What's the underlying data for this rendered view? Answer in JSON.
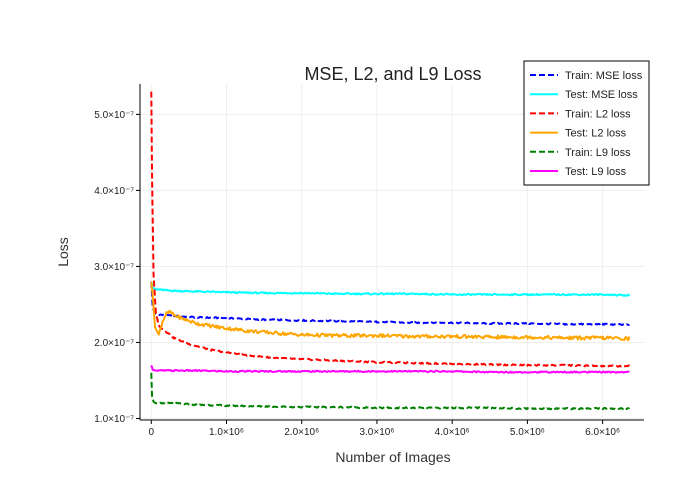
{
  "chart_data": {
    "type": "line",
    "title": "MSE, L2, and L9 Loss",
    "xlabel": "Number of Images",
    "ylabel": "Loss",
    "xlim": [
      -150000,
      6550000
    ],
    "ylim": [
      9.8e-08,
      5.4e-07
    ],
    "x_ticks": [
      0,
      1000000,
      2000000,
      3000000,
      4000000,
      5000000,
      6000000
    ],
    "x_tick_labels": [
      "0",
      "1.0×10⁶",
      "2.0×10⁶",
      "3.0×10⁶",
      "4.0×10⁶",
      "5.0×10⁶",
      "6.0×10⁶"
    ],
    "y_ticks": [
      1e-07,
      2e-07,
      3e-07,
      4e-07,
      5e-07
    ],
    "y_tick_labels": [
      "1.0×10⁻⁷",
      "2.0×10⁻⁷",
      "3.0×10⁻⁷",
      "4.0×10⁻⁷",
      "5.0×10⁻⁷"
    ],
    "grid": true,
    "legend_position": "top-right",
    "series": [
      {
        "name": "Train: MSE loss",
        "color": "#0000ff",
        "dash": "dashed",
        "x": [
          0,
          20000,
          60000,
          150000,
          300000,
          600000,
          1000000,
          1500000,
          2000000,
          2500000,
          3000000,
          3500000,
          4000000,
          4500000,
          5000000,
          5500000,
          6000000,
          6350000
        ],
        "y": [
          2.8e-07,
          2.45e-07,
          2.38e-07,
          2.36e-07,
          2.35e-07,
          2.33e-07,
          2.32e-07,
          2.3e-07,
          2.29e-07,
          2.28e-07,
          2.27e-07,
          2.26e-07,
          2.26e-07,
          2.25e-07,
          2.25e-07,
          2.24e-07,
          2.24e-07,
          2.23e-07
        ]
      },
      {
        "name": "Test: MSE loss",
        "color": "#00ffff",
        "dash": "solid",
        "x": [
          0,
          20000,
          60000,
          150000,
          300000,
          600000,
          1000000,
          1500000,
          2000000,
          2500000,
          3000000,
          3500000,
          4000000,
          4500000,
          5000000,
          5500000,
          6000000,
          6350000
        ],
        "y": [
          2.8e-07,
          2.72e-07,
          2.7e-07,
          2.69e-07,
          2.68e-07,
          2.67e-07,
          2.66e-07,
          2.65e-07,
          2.65e-07,
          2.64e-07,
          2.64e-07,
          2.64e-07,
          2.63e-07,
          2.63e-07,
          2.63e-07,
          2.63e-07,
          2.63e-07,
          2.62e-07
        ]
      },
      {
        "name": "Train: L2 loss",
        "color": "#ff0000",
        "dash": "dashed",
        "x": [
          0,
          10000,
          30000,
          60000,
          100000,
          200000,
          300000,
          500000,
          800000,
          1200000,
          1600000,
          2000000,
          2500000,
          3000000,
          3500000,
          4000000,
          4500000,
          5000000,
          5500000,
          6000000,
          6350000
        ],
        "y": [
          5.3e-07,
          4.2e-07,
          2.9e-07,
          2.4e-07,
          2.22e-07,
          2.14e-07,
          2.06e-07,
          1.98e-07,
          1.9e-07,
          1.84e-07,
          1.8e-07,
          1.78e-07,
          1.76e-07,
          1.74e-07,
          1.73e-07,
          1.72e-07,
          1.71e-07,
          1.7e-07,
          1.7e-07,
          1.69e-07,
          1.69e-07
        ]
      },
      {
        "name": "Test: L2 loss",
        "color": "#ffa500",
        "dash": "solid",
        "x": [
          0,
          20000,
          50000,
          100000,
          150000,
          200000,
          250000,
          300000,
          400000,
          600000,
          900000,
          1300000,
          1700000,
          2000000,
          2500000,
          3000000,
          3500000,
          4000000,
          4500000,
          5000000,
          5500000,
          6000000,
          6350000
        ],
        "y": [
          2.8e-07,
          2.6e-07,
          2.2e-07,
          2.1e-07,
          2.28e-07,
          2.38e-07,
          2.4e-07,
          2.36e-07,
          2.32e-07,
          2.25e-07,
          2.2e-07,
          2.15e-07,
          2.12e-07,
          2.1e-07,
          2.09e-07,
          2.09e-07,
          2.08e-07,
          2.08e-07,
          2.07e-07,
          2.07e-07,
          2.06e-07,
          2.06e-07,
          2.05e-07
        ]
      },
      {
        "name": "Train: L9 loss",
        "color": "#008000",
        "dash": "dashed",
        "x": [
          0,
          10000,
          30000,
          60000,
          150000,
          300000,
          600000,
          1000000,
          1500000,
          2000000,
          2500000,
          3000000,
          3500000,
          4000000,
          4500000,
          5000000,
          5500000,
          6000000,
          6350000
        ],
        "y": [
          1.6e-07,
          1.3e-07,
          1.22e-07,
          1.2e-07,
          1.2e-07,
          1.2e-07,
          1.18e-07,
          1.17e-07,
          1.16e-07,
          1.15e-07,
          1.15e-07,
          1.14e-07,
          1.14e-07,
          1.14e-07,
          1.14e-07,
          1.13e-07,
          1.13e-07,
          1.13e-07,
          1.13e-07
        ]
      },
      {
        "name": "Test: L9 loss",
        "color": "#ff00ff",
        "dash": "solid",
        "x": [
          0,
          20000,
          60000,
          150000,
          300000,
          600000,
          1000000,
          1500000,
          2000000,
          2500000,
          3000000,
          3500000,
          4000000,
          4500000,
          5000000,
          5500000,
          6000000,
          6350000
        ],
        "y": [
          1.7e-07,
          1.64e-07,
          1.63e-07,
          1.63e-07,
          1.63e-07,
          1.63e-07,
          1.62e-07,
          1.62e-07,
          1.62e-07,
          1.62e-07,
          1.62e-07,
          1.62e-07,
          1.62e-07,
          1.61e-07,
          1.61e-07,
          1.61e-07,
          1.61e-07,
          1.61e-07
        ]
      }
    ]
  }
}
